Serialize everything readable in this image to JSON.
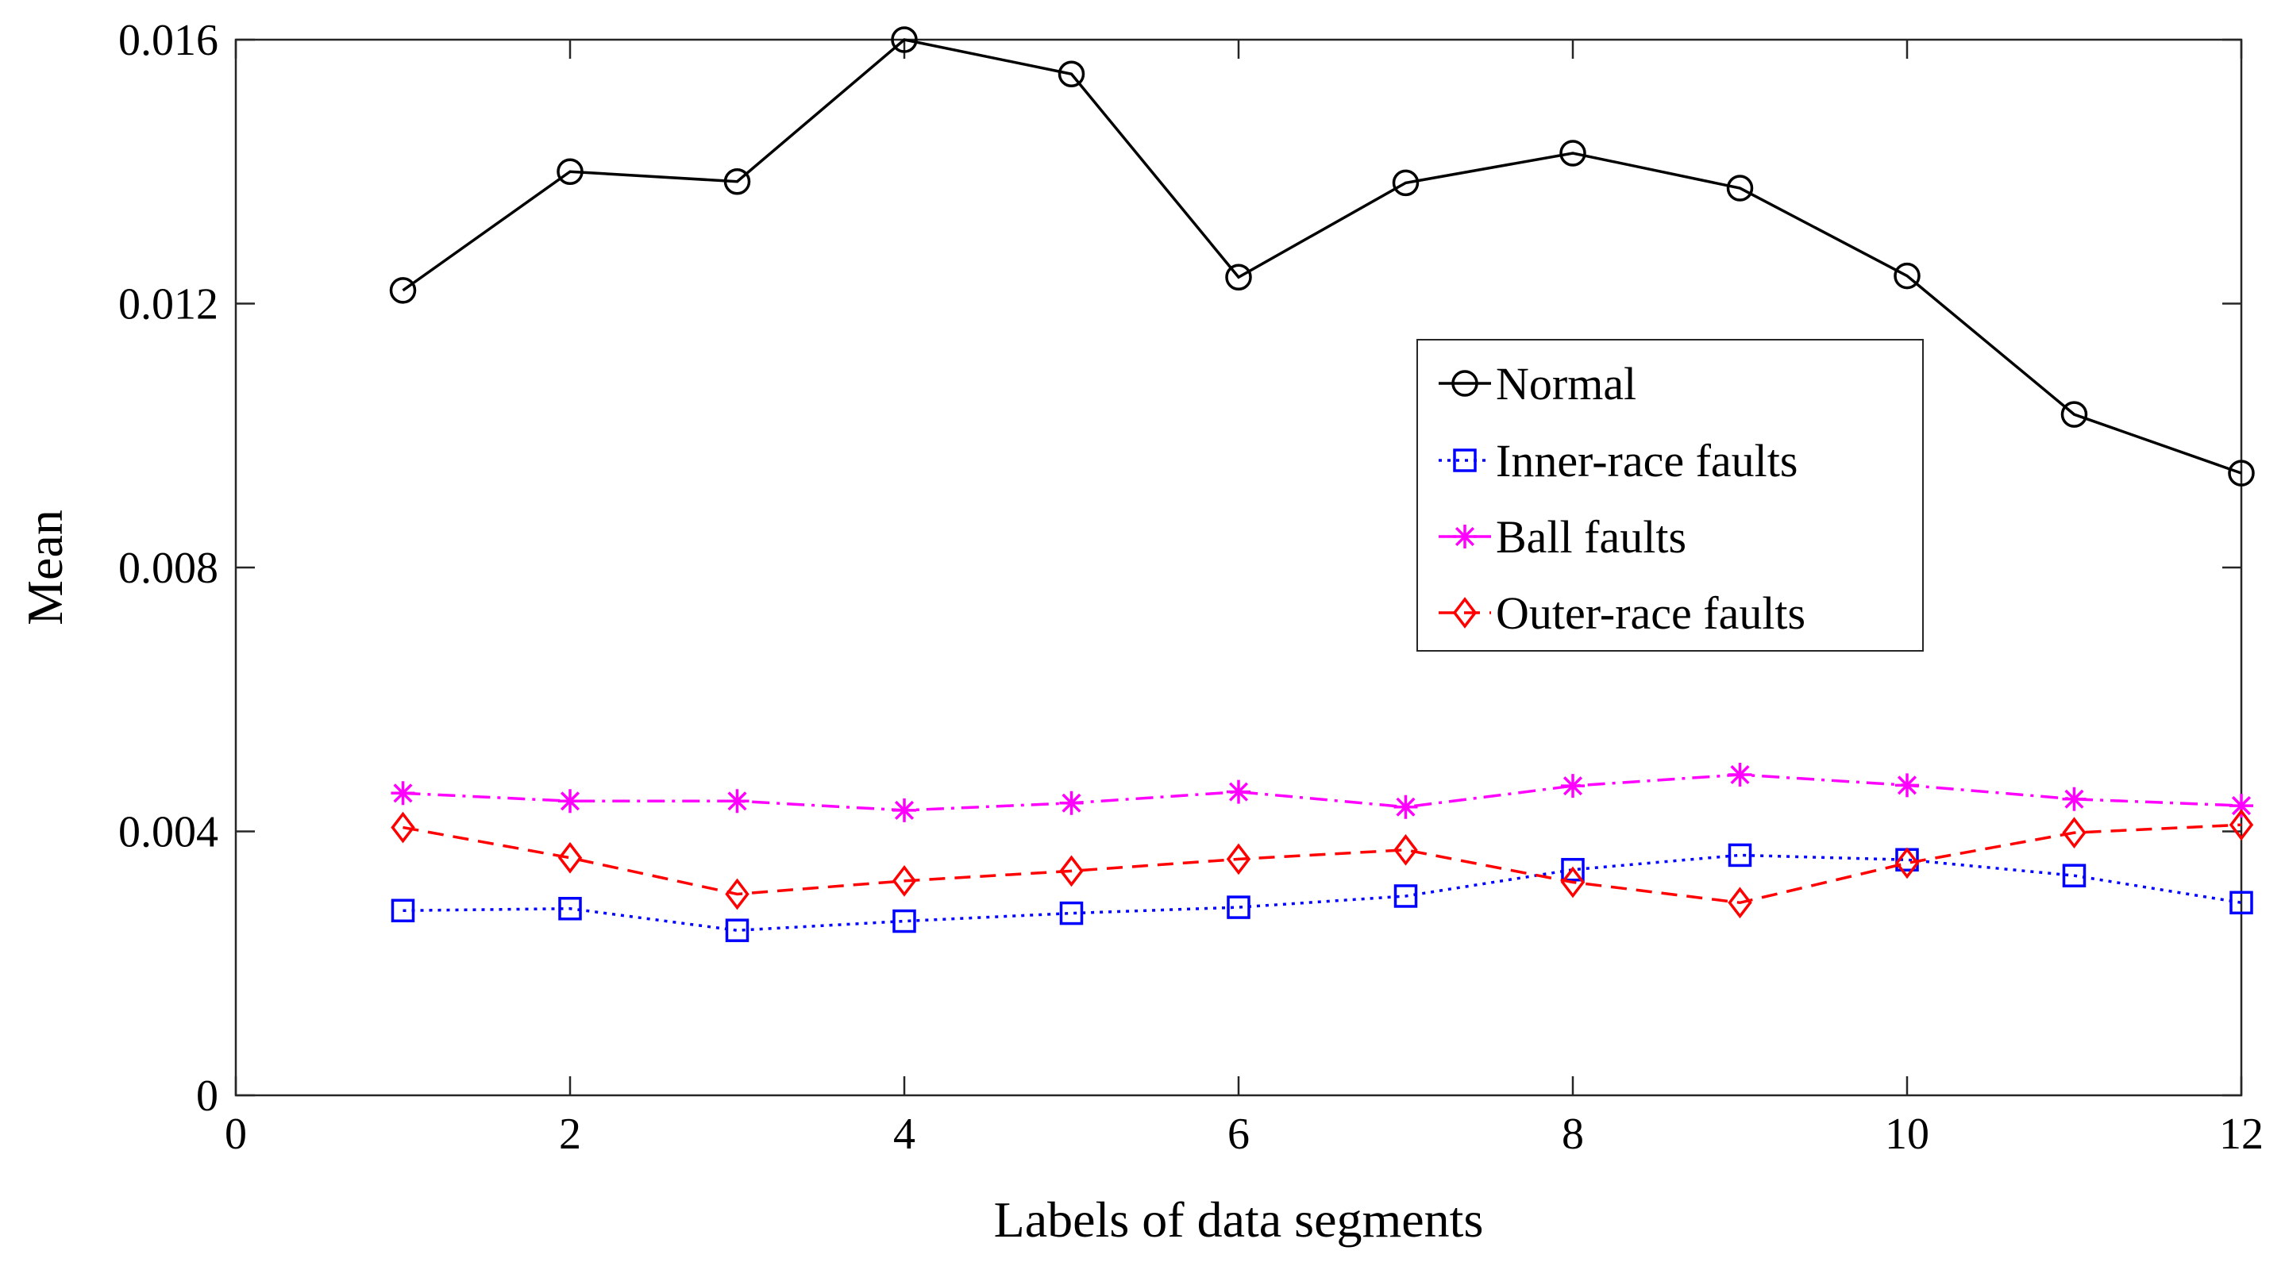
{
  "chart_data": {
    "type": "line",
    "title": "",
    "xlabel": "Labels of data segments",
    "ylabel": "Mean",
    "xlim": [
      0,
      12
    ],
    "ylim": [
      0,
      0.016
    ],
    "xticks": [
      0,
      2,
      4,
      6,
      8,
      10,
      12
    ],
    "xtick_labels": [
      "0",
      "2",
      "4",
      "6",
      "8",
      "10",
      "12"
    ],
    "yticks": [
      0,
      0.004,
      0.008,
      0.012,
      0.016
    ],
    "ytick_labels": [
      "0",
      "0.004",
      "0.008",
      "0.012",
      "0.016"
    ],
    "grid": false,
    "legend_position": "center-right",
    "x": [
      1,
      2,
      3,
      4,
      5,
      6,
      7,
      8,
      9,
      10,
      11,
      12
    ],
    "series": [
      {
        "name": "Normal",
        "color": "#000000",
        "marker": "circle",
        "line_style": "solid",
        "values": [
          0.0122,
          0.014,
          0.01385,
          0.016,
          0.01548,
          0.0124,
          0.01383,
          0.01428,
          0.01375,
          0.01242,
          0.01032,
          0.00943
        ]
      },
      {
        "name": "Inner-race faults",
        "color": "#0000ff",
        "marker": "square",
        "line_style": "dotted",
        "values": [
          0.0028,
          0.00283,
          0.0025,
          0.00264,
          0.00276,
          0.00285,
          0.00302,
          0.00342,
          0.00364,
          0.00357,
          0.00333,
          0.00292
        ]
      },
      {
        "name": "Ball faults",
        "color": "#ff00ff",
        "marker": "star",
        "line_style": "dashdot",
        "values": [
          0.00458,
          0.00446,
          0.00446,
          0.00432,
          0.00443,
          0.0046,
          0.00437,
          0.00469,
          0.00486,
          0.0047,
          0.00449,
          0.00439
        ]
      },
      {
        "name": "Outer-race faults",
        "color": "#ff0000",
        "marker": "diamond",
        "line_style": "dashed",
        "values": [
          0.00406,
          0.0036,
          0.00305,
          0.00325,
          0.0034,
          0.00358,
          0.00372,
          0.00323,
          0.00292,
          0.00352,
          0.00398,
          0.0041
        ]
      }
    ]
  }
}
